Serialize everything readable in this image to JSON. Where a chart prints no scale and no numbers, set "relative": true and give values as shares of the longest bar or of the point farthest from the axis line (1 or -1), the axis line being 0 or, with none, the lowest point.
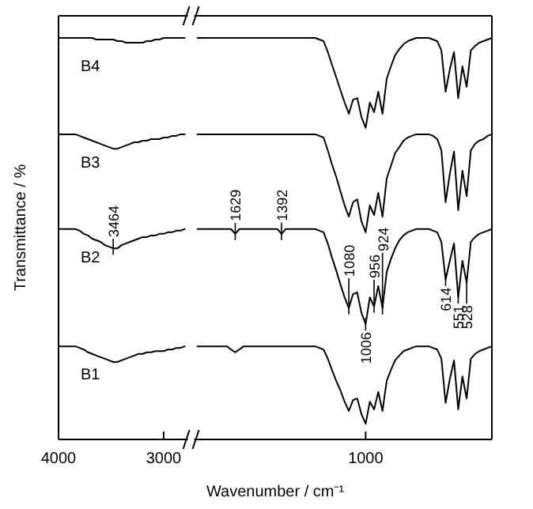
{
  "chart_data": {
    "type": "line",
    "relative": true,
    "ylabel": "Transmittance / %",
    "xlabel": "Wavenumber / cm⁻¹",
    "categories": [
      "4000",
      null,
      null,
      null,
      null,
      null,
      null,
      null,
      null,
      null,
      null,
      null,
      null,
      null,
      null,
      null,
      null,
      null,
      null,
      null,
      null,
      null,
      null,
      null,
      null,
      "3000",
      null,
      null,
      null,
      null,
      null,
      null,
      null,
      null,
      null,
      null,
      null,
      null,
      null,
      null,
      null,
      null,
      null,
      null,
      null,
      null,
      null,
      null,
      null,
      null,
      null,
      null,
      null,
      null,
      null,
      null,
      null,
      null,
      null,
      null,
      null,
      null,
      null,
      null,
      null,
      null,
      null,
      null,
      null,
      null,
      null,
      null,
      null,
      "1000",
      null,
      null,
      null,
      null,
      null,
      null,
      null,
      null,
      null,
      null,
      null,
      null,
      null,
      null,
      null,
      null,
      null,
      null,
      null,
      null,
      null,
      null,
      null,
      null,
      null,
      null,
      null,
      null,
      null,
      null
    ],
    "series": [
      {
        "name": "B4",
        "color": "#000000",
        "values": [
          1,
          1,
          1,
          1,
          1,
          1,
          1,
          1,
          1,
          0.996,
          0.996,
          0.996,
          0.996,
          0.996,
          0.992,
          0.992,
          0.988,
          0.988,
          0.988,
          0.988,
          0.988,
          0.992,
          0.992,
          0.996,
          0.996,
          1,
          1,
          1,
          1,
          1,
          1,
          null,
          null,
          1,
          1,
          1,
          1,
          1,
          1,
          1,
          1,
          1,
          1,
          1,
          1,
          1,
          1,
          1,
          1,
          1,
          1,
          1,
          1,
          1,
          1,
          1,
          1,
          1,
          1,
          1,
          1,
          1,
          0.996,
          0.992,
          0.965,
          0.933,
          0.902,
          0.87,
          0.839,
          0.811,
          0.846,
          0.85,
          0.803,
          0.776,
          0.839,
          0.815,
          0.866,
          0.811,
          0.898,
          0.929,
          0.957,
          0.972,
          0.984,
          0.992,
          0.996,
          1,
          1,
          1,
          1,
          0.996,
          0.992,
          0.969,
          0.866,
          0.921,
          0.965,
          0.85,
          0.929,
          0.878,
          0.969,
          0.98,
          0.988,
          0.992,
          0.996,
          1
        ]
      },
      {
        "name": "B3",
        "color": "#000000",
        "values": [
          0.76,
          0.76,
          0.76,
          0.76,
          0.76,
          0.756,
          0.752,
          0.748,
          0.744,
          0.74,
          0.736,
          0.732,
          0.728,
          0.724,
          0.724,
          0.728,
          0.732,
          0.736,
          0.74,
          0.74,
          0.744,
          0.744,
          0.748,
          0.748,
          0.748,
          0.752,
          0.752,
          0.756,
          0.756,
          0.76,
          0.76,
          null,
          null,
          0.76,
          0.76,
          0.76,
          0.76,
          0.76,
          0.76,
          0.76,
          0.76,
          0.76,
          0.76,
          0.76,
          0.76,
          0.76,
          0.76,
          0.76,
          0.76,
          0.76,
          0.76,
          0.76,
          0.76,
          0.76,
          0.76,
          0.76,
          0.76,
          0.76,
          0.76,
          0.76,
          0.76,
          0.76,
          0.756,
          0.752,
          0.72,
          0.685,
          0.654,
          0.618,
          0.583,
          0.555,
          0.591,
          0.598,
          0.543,
          0.516,
          0.583,
          0.559,
          0.614,
          0.555,
          0.65,
          0.681,
          0.713,
          0.728,
          0.744,
          0.752,
          0.756,
          0.76,
          0.76,
          0.76,
          0.76,
          0.756,
          0.748,
          0.72,
          0.591,
          0.661,
          0.717,
          0.571,
          0.669,
          0.606,
          0.72,
          0.736,
          0.744,
          0.748,
          0.756,
          0.76
        ]
      },
      {
        "name": "B2",
        "color": "#000000",
        "values": [
          0.524,
          0.524,
          0.524,
          0.524,
          0.524,
          0.52,
          0.512,
          0.508,
          0.5,
          0.496,
          0.492,
          0.484,
          0.48,
          0.476,
          0.476,
          0.484,
          0.488,
          0.492,
          0.496,
          0.5,
          0.504,
          0.504,
          0.508,
          0.508,
          0.512,
          0.512,
          0.516,
          0.516,
          0.52,
          0.52,
          0.524,
          null,
          null,
          0.524,
          0.524,
          0.524,
          0.524,
          0.524,
          0.524,
          0.524,
          0.524,
          0.524,
          0.512,
          0.524,
          0.524,
          0.524,
          0.524,
          0.524,
          0.524,
          0.524,
          0.524,
          0.524,
          0.524,
          0.512,
          0.524,
          0.524,
          0.524,
          0.524,
          0.524,
          0.524,
          0.524,
          0.524,
          0.52,
          0.516,
          0.488,
          0.453,
          0.421,
          0.386,
          0.354,
          0.327,
          0.362,
          0.366,
          0.315,
          0.287,
          0.354,
          0.331,
          0.382,
          0.327,
          0.417,
          0.449,
          0.476,
          0.496,
          0.508,
          0.516,
          0.52,
          0.524,
          0.524,
          0.524,
          0.524,
          0.52,
          0.516,
          0.492,
          0.398,
          0.445,
          0.488,
          0.354,
          0.445,
          0.39,
          0.492,
          0.504,
          0.512,
          0.516,
          0.52,
          0.524
        ]
      },
      {
        "name": "B1",
        "color": "#000000",
        "values": [
          0.232,
          0.232,
          0.232,
          0.232,
          0.232,
          0.228,
          0.224,
          0.217,
          0.213,
          0.209,
          0.205,
          0.201,
          0.197,
          0.193,
          0.193,
          0.197,
          0.201,
          0.205,
          0.209,
          0.213,
          0.213,
          0.217,
          0.217,
          0.22,
          0.22,
          0.22,
          0.224,
          0.224,
          0.228,
          0.228,
          0.232,
          null,
          null,
          0.232,
          0.232,
          0.232,
          0.232,
          0.232,
          0.232,
          0.232,
          0.232,
          0.224,
          0.217,
          0.224,
          0.232,
          0.232,
          0.232,
          0.232,
          0.232,
          0.232,
          0.232,
          0.232,
          0.232,
          0.232,
          0.232,
          0.232,
          0.232,
          0.232,
          0.232,
          0.232,
          0.232,
          0.232,
          0.228,
          0.224,
          0.201,
          0.173,
          0.146,
          0.122,
          0.094,
          0.071,
          0.098,
          0.102,
          0.063,
          0.039,
          0.094,
          0.075,
          0.118,
          0.071,
          0.146,
          0.173,
          0.197,
          0.209,
          0.22,
          0.224,
          0.228,
          0.232,
          0.232,
          0.232,
          0.232,
          0.228,
          0.224,
          0.201,
          0.091,
          0.15,
          0.197,
          0.075,
          0.157,
          0.102,
          0.201,
          0.213,
          0.22,
          0.224,
          0.228,
          0.232
        ]
      }
    ],
    "annotations": [
      {
        "text": "3464",
        "y": 0.476
      },
      {
        "text": "1629",
        "y": 0.512
      },
      {
        "text": "1392",
        "y": 0.512
      },
      {
        "text": "1080",
        "y": 0.327
      },
      {
        "text": "1006",
        "y": 0.287
      },
      {
        "text": "956",
        "y": 0.331
      },
      {
        "text": "924",
        "y": 0.327
      },
      {
        "text": "614",
        "y": 0.398
      },
      {
        "text": "551",
        "y": 0.354
      },
      {
        "text": "528",
        "y": 0.39
      }
    ]
  }
}
